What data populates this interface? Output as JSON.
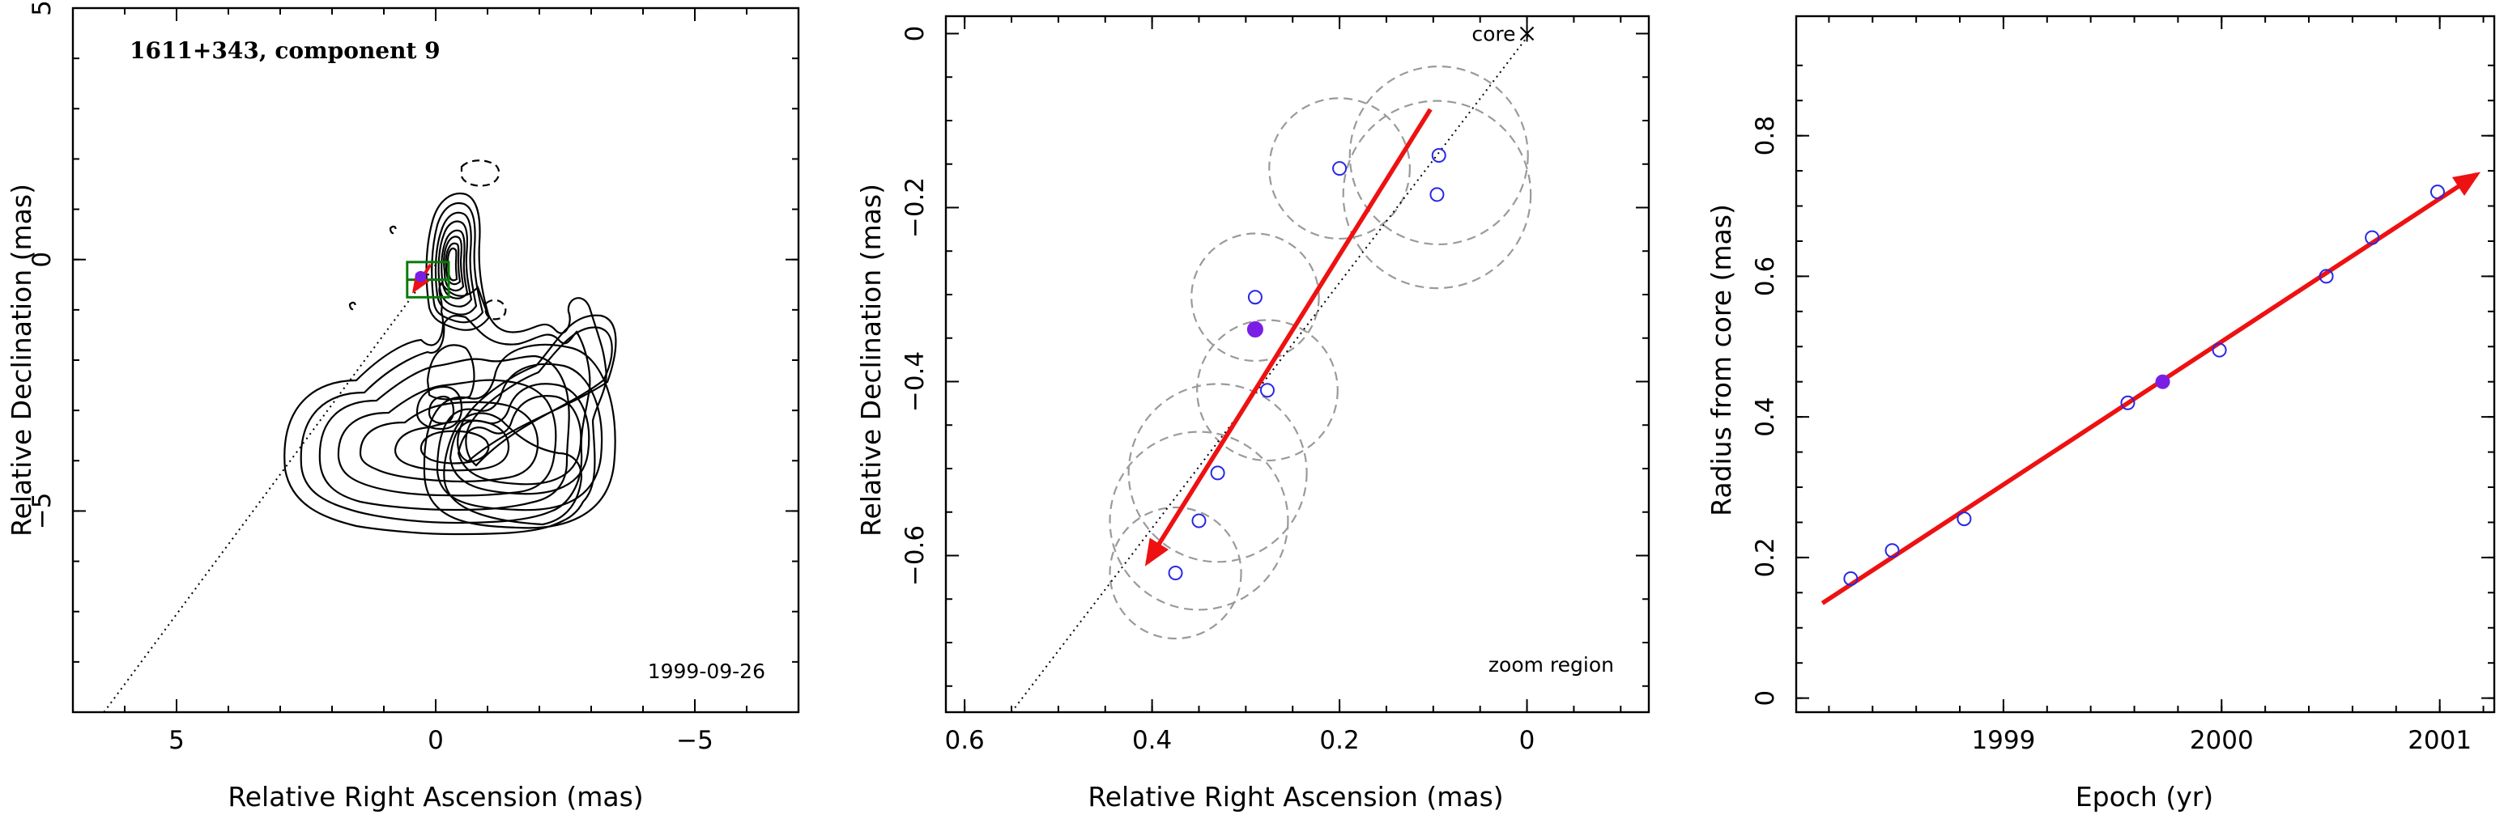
{
  "chart_data": [
    {
      "type": "contour",
      "title": "1611+343, component 9",
      "epoch_label": "1999-09-26",
      "xlabel": "Relative Right Ascension (mas)",
      "ylabel": "Relative Declination (mas)",
      "xlim": [
        7,
        -7
      ],
      "ylim": [
        -9,
        5
      ],
      "xticks": [
        5,
        0,
        -5
      ],
      "xtick_labels": [
        "5",
        "0",
        "−5"
      ],
      "yticks": [
        5,
        0,
        -5
      ],
      "ytick_labels": [
        "5",
        "0",
        "−5"
      ],
      "ejection_line": [
        [
          6.4,
          -9.0
        ],
        [
          0.0,
          -0.1
        ]
      ],
      "zoom_box": {
        "x": [
          -0.25,
          0.55
        ],
        "y": [
          -0.75,
          -0.05
        ]
      },
      "colors": {
        "contour": "#000000",
        "zoom_box": "#0a7a0a",
        "motion_arrow": "#ee1111"
      }
    },
    {
      "type": "scatter",
      "label": "zoom region",
      "core_label": "core",
      "xlabel": "Relative Right Ascension (mas)",
      "ylabel": "Relative Declination (mas)",
      "xlim": [
        0.62,
        -0.13
      ],
      "ylim": [
        -0.78,
        0.02
      ],
      "xticks": [
        0.6,
        0.4,
        0.2,
        0
      ],
      "xtick_labels": [
        "0.6",
        "0.4",
        "0.2",
        "0"
      ],
      "yticks": [
        0,
        -0.2,
        -0.4,
        -0.6
      ],
      "ytick_labels": [
        "0",
        "−0.2",
        "−0.4",
        "−0.6"
      ],
      "series": [
        {
          "values_x": [
            0.2,
            0.094,
            0.096,
            0.29,
            0.277,
            0.33,
            0.35,
            0.375
          ],
          "values_y": [
            -0.155,
            -0.14,
            -0.185,
            -0.303,
            -0.41,
            -0.505,
            -0.56,
            -0.62
          ],
          "marker": "open-circle",
          "color": "#2727e6"
        },
        {
          "values_x": [
            0.29
          ],
          "values_y": [
            -0.34
          ],
          "marker": "filled-circle",
          "color": "#7a1ee6"
        }
      ],
      "component_circles": [
        {
          "cx": 0.2,
          "cy": -0.155,
          "r": 0.075
        },
        {
          "cx": 0.094,
          "cy": -0.14,
          "r": 0.095
        },
        {
          "cx": 0.096,
          "cy": -0.185,
          "r": 0.1
        },
        {
          "cx": 0.29,
          "cy": -0.303,
          "r": 0.068
        },
        {
          "cx": 0.277,
          "cy": -0.41,
          "r": 0.075
        },
        {
          "cx": 0.33,
          "cy": -0.505,
          "r": 0.095
        },
        {
          "cx": 0.35,
          "cy": -0.56,
          "r": 0.095
        },
        {
          "cx": 0.375,
          "cy": -0.62,
          "r": 0.07
        }
      ],
      "motion_arrow": {
        "from": [
          0.103,
          -0.087
        ],
        "to": [
          0.405,
          -0.608
        ]
      },
      "ejection_line": [
        [
          0.55,
          -0.78
        ],
        [
          -0.003,
          0.0
        ]
      ],
      "core": [
        0.0,
        0.0
      ]
    },
    {
      "type": "scatter",
      "xlabel": "Epoch (yr)",
      "ylabel": "Radius from core (mas)",
      "xlim": [
        1998.05,
        2001.25
      ],
      "ylim": [
        -0.02,
        0.97
      ],
      "xticks": [
        1999,
        2000,
        2001
      ],
      "xtick_labels": [
        "1999",
        "2000",
        "2001"
      ],
      "yticks": [
        0,
        0.2,
        0.4,
        0.6,
        0.8
      ],
      "ytick_labels": [
        "0",
        "0.2",
        "0.4",
        "0.6",
        "0.8"
      ],
      "series": [
        {
          "x": [
            1998.3,
            1998.49,
            1998.82,
            1999.57,
            1999.99,
            2000.48,
            2000.69,
            2000.99
          ],
          "y": [
            0.17,
            0.21,
            0.255,
            0.42,
            0.495,
            0.6,
            0.655,
            0.72
          ],
          "marker": "open-circle",
          "color": "#2727e6"
        },
        {
          "x": [
            1999.73
          ],
          "y": [
            0.45
          ],
          "marker": "filled-circle",
          "color": "#7a1ee6"
        }
      ],
      "fit_line": {
        "from": [
          1998.17,
          0.135
        ],
        "to": [
          2001.17,
          0.745
        ],
        "color": "#ee1111"
      }
    }
  ]
}
